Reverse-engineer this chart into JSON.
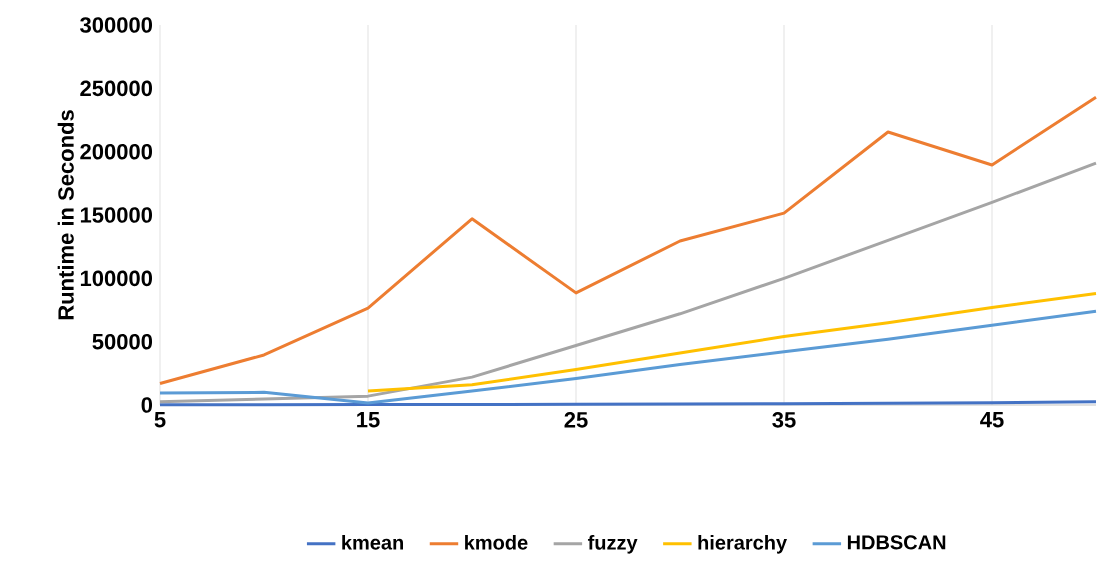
{
  "chart_data": {
    "type": "line",
    "ylabel": "Runtime in Seconds",
    "x": [
      5,
      10,
      15,
      20,
      25,
      30,
      35,
      40,
      45,
      50
    ],
    "series": [
      {
        "name": "kmean",
        "color": "#4472c4",
        "values": [
          100,
          200,
          300,
          400,
          600,
          800,
          1000,
          1300,
          1800,
          2500
        ]
      },
      {
        "name": "kmode",
        "color": "#ed7d31",
        "values": [
          17000,
          39500,
          76500,
          147000,
          88500,
          129500,
          151500,
          215500,
          189500,
          243000
        ]
      },
      {
        "name": "fuzzy",
        "color": "#a5a5a5",
        "values": [
          2500,
          4700,
          7000,
          22000,
          47000,
          72000,
          100000,
          130000,
          160000,
          191000
        ]
      },
      {
        "name": "hierarchy",
        "color": "#ffc000",
        "values": [
          null,
          null,
          11000,
          16000,
          28000,
          41000,
          54000,
          65000,
          77000,
          88000
        ]
      },
      {
        "name": "HDBSCAN",
        "color": "#5b9bd5",
        "values": [
          9500,
          10000,
          1500,
          11000,
          21000,
          32000,
          42000,
          52000,
          63000,
          74000
        ]
      }
    ],
    "xlim": [
      5,
      50
    ],
    "ylim": [
      0,
      300000
    ],
    "xticks": [
      5,
      15,
      25,
      35,
      45
    ],
    "yticks": [
      0,
      50000,
      100000,
      150000,
      200000,
      250000,
      300000
    ],
    "grid": "x",
    "legend": "bottom",
    "marker": "none",
    "line_style": "solid"
  }
}
